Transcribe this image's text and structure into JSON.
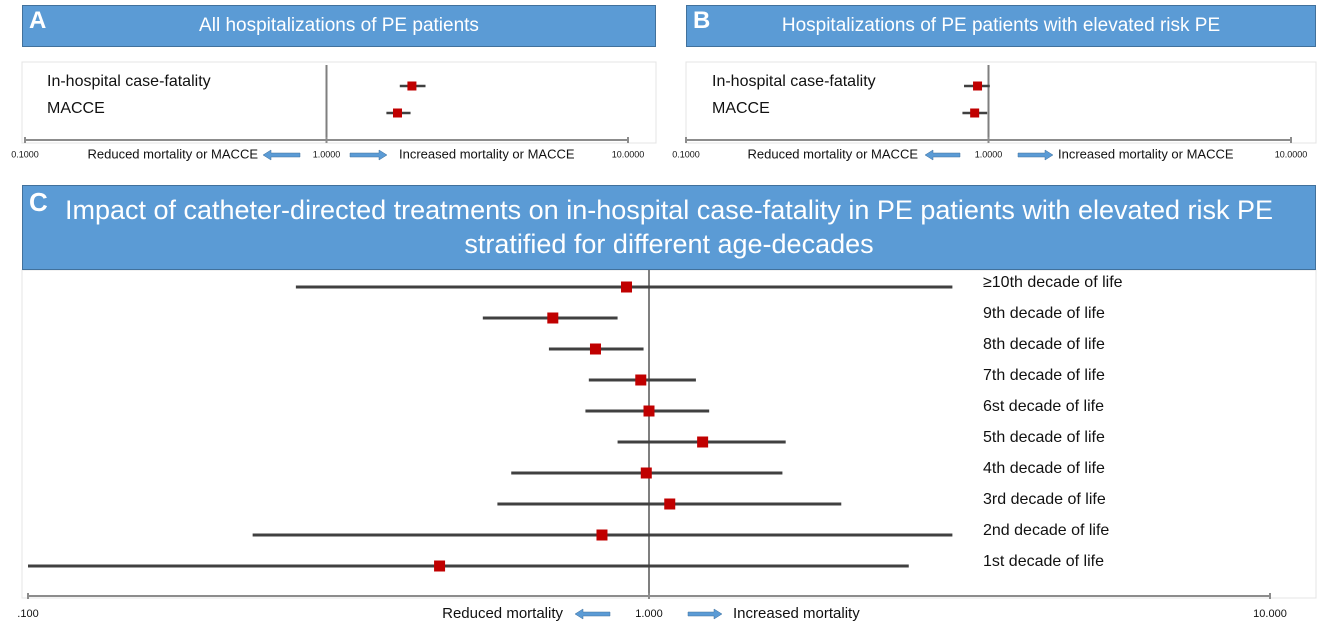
{
  "chart_data": [
    {
      "type": "forest",
      "panel_label": "A",
      "title": "All hospitalizations of PE patients",
      "categories": [
        "In-hospital case-fatality",
        "MACCE"
      ],
      "values": [
        1.92,
        1.72
      ],
      "lower": [
        1.75,
        1.58
      ],
      "upper": [
        2.13,
        1.9
      ],
      "log_scale": true,
      "xlim": [
        0.1,
        10
      ],
      "xticks": [
        {
          "value": 0.1,
          "label": "0.1000"
        },
        {
          "value": 1,
          "label": "1.0000"
        },
        {
          "value": 10,
          "label": "10.0000"
        }
      ],
      "reference_line": 1,
      "annotations": [
        "Reduced mortality or MACCE",
        "Increased mortality or MACCE"
      ],
      "color": "#c00000",
      "line_color": "#404040",
      "header_color": "#5b9bd5"
    },
    {
      "type": "forest",
      "panel_label": "B",
      "title": "Hospitalizations of PE patients with elevated risk PE",
      "categories": [
        "In-hospital case-fatality",
        "MACCE"
      ],
      "values": [
        0.92,
        0.9
      ],
      "lower": [
        0.83,
        0.82
      ],
      "upper": [
        1.01,
        0.99
      ],
      "log_scale": true,
      "xlim": [
        0.1,
        10
      ],
      "xticks": [
        {
          "value": 0.1,
          "label": "0.1000"
        },
        {
          "value": 1,
          "label": "1.0000"
        },
        {
          "value": 10,
          "label": "10.0000"
        }
      ],
      "reference_line": 1,
      "annotations": [
        "Reduced mortality or MACCE",
        "Increased mortality or MACCE"
      ],
      "color": "#c00000",
      "line_color": "#404040",
      "header_color": "#5b9bd5"
    },
    {
      "type": "forest",
      "panel_label": "C",
      "title": "Impact of catheter-directed treatments on in-hospital case-fatality in PE patients with elevated risk PE stratified for different age-decades",
      "categories": [
        "≥10th decade of life",
        "9th decade of life",
        "8th decade of life",
        "7th decade of life",
        "6st decade of life",
        "5th decade of life",
        "4th decade of life",
        "3rd decade of life",
        "2nd decade of life",
        "1st decade of life"
      ],
      "values": [
        0.92,
        0.7,
        0.82,
        0.97,
        1.0,
        1.22,
        0.99,
        1.08,
        0.84,
        0.46
      ],
      "lower": [
        0.27,
        0.54,
        0.69,
        0.8,
        0.79,
        0.89,
        0.6,
        0.57,
        0.23,
        0.1
      ],
      "upper": [
        3.08,
        0.89,
        0.98,
        1.19,
        1.25,
        1.66,
        1.64,
        2.04,
        3.08,
        2.62
      ],
      "log_scale": true,
      "xlim": [
        0.1,
        10
      ],
      "xticks": [
        {
          "value": 0.1,
          "label": ".100"
        },
        {
          "value": 1,
          "label": "1.000"
        },
        {
          "value": 10,
          "label": "10.000"
        }
      ],
      "reference_line": 1,
      "annotations": [
        "Reduced mortality",
        "Increased mortality"
      ],
      "color": "#c00000",
      "line_color": "#404040",
      "header_color": "#5b9bd5"
    }
  ]
}
